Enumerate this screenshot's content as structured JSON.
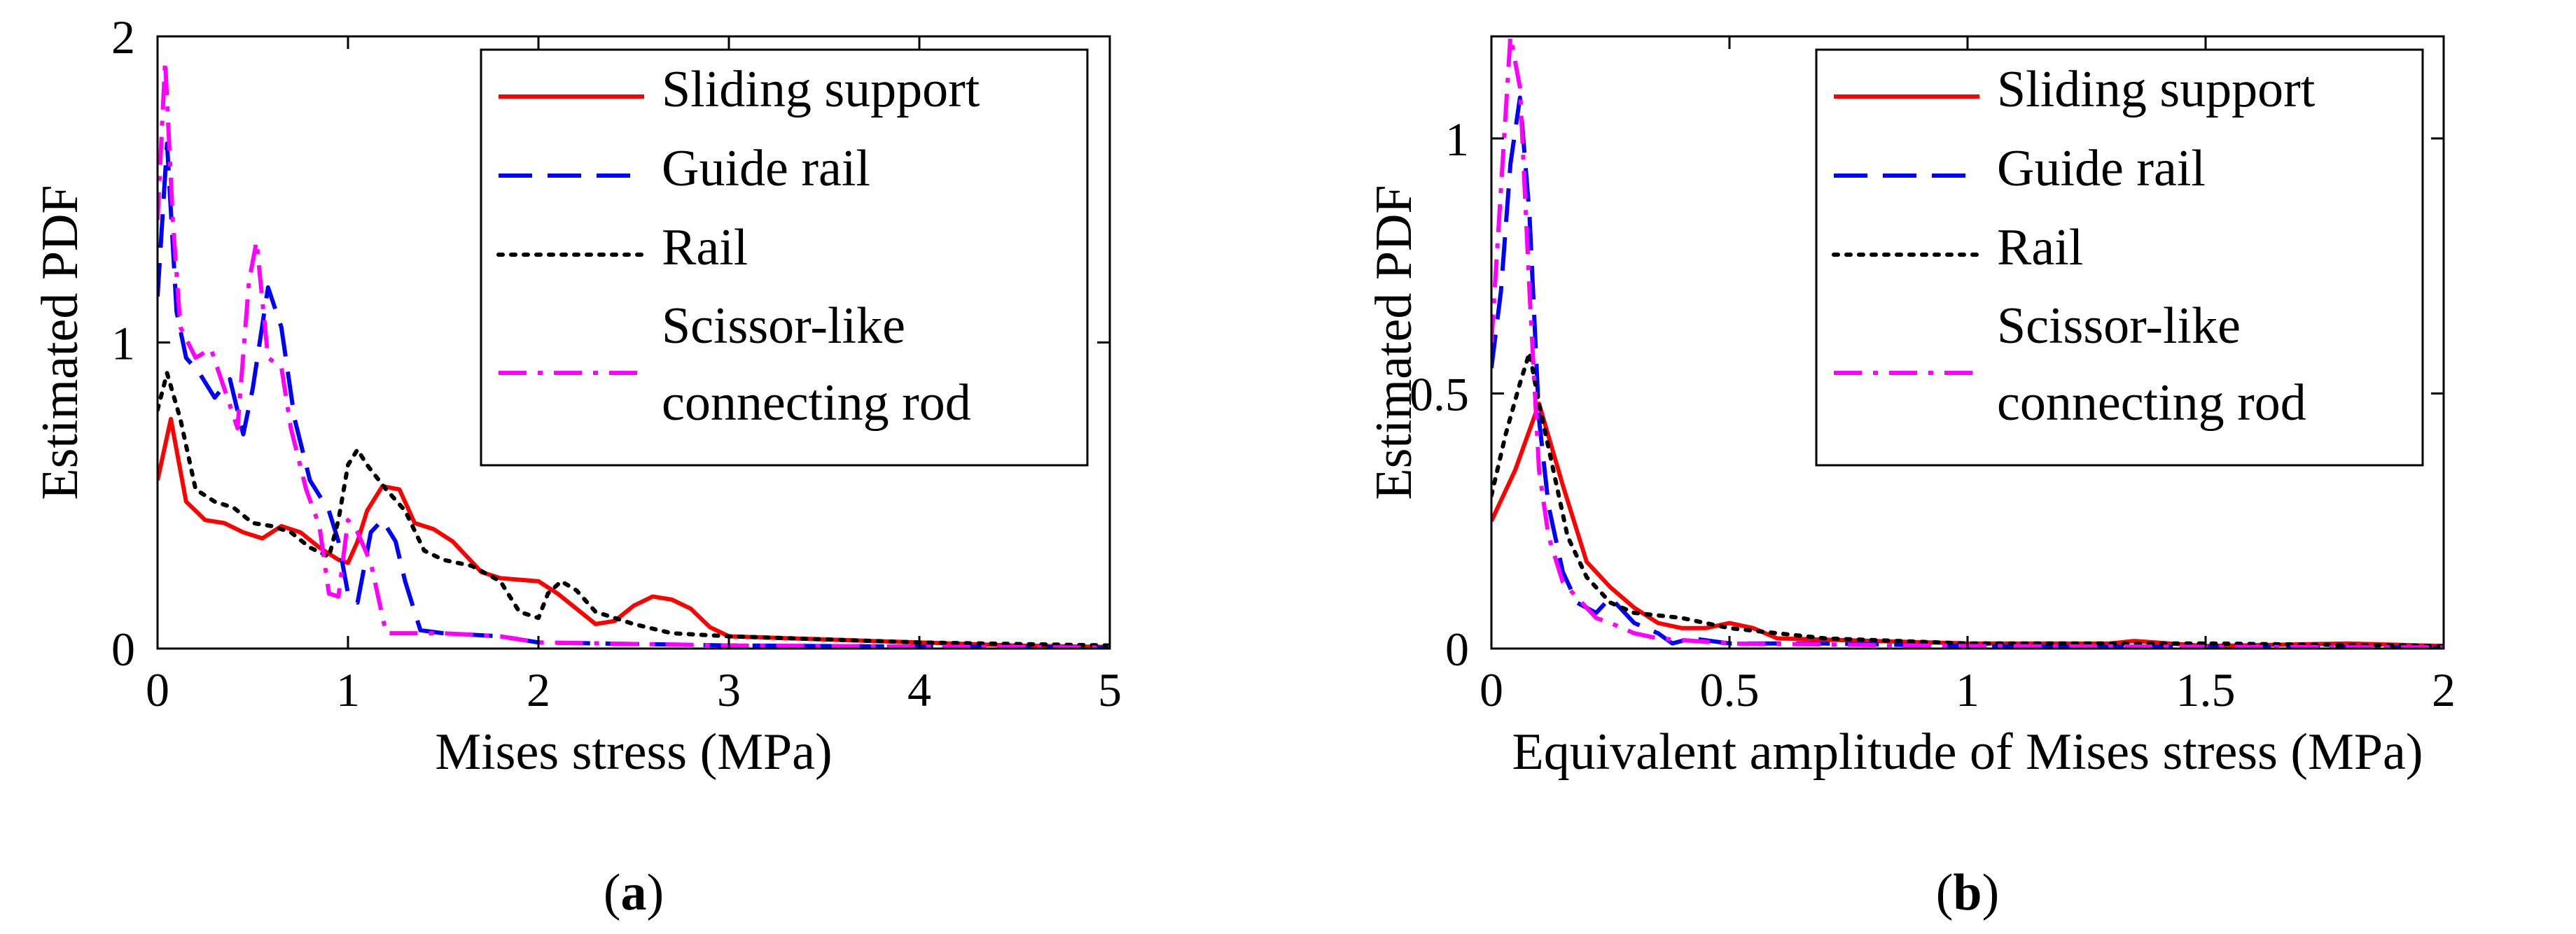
{
  "chart_data": [
    {
      "type": "line",
      "panel_label": "a",
      "xlabel": "Mises stress (MPa)",
      "ylabel": "Estimated PDF",
      "xlim": [
        0,
        5
      ],
      "ylim": [
        0,
        2
      ],
      "x_ticks": [
        "0",
        "1",
        "2",
        "3",
        "4",
        "5"
      ],
      "y_ticks": [
        "0",
        "1",
        "2"
      ],
      "legend_position": "top-right",
      "series": [
        {
          "name": "Sliding support",
          "color": "#ff0000",
          "style": "solid",
          "points": [
            [
              0,
              0.55
            ],
            [
              0.07,
              0.75
            ],
            [
              0.15,
              0.48
            ],
            [
              0.25,
              0.42
            ],
            [
              0.35,
              0.41
            ],
            [
              0.45,
              0.38
            ],
            [
              0.55,
              0.36
            ],
            [
              0.65,
              0.4
            ],
            [
              0.75,
              0.38
            ],
            [
              0.85,
              0.33
            ],
            [
              0.95,
              0.29
            ],
            [
              1.0,
              0.28
            ],
            [
              1.05,
              0.35
            ],
            [
              1.1,
              0.45
            ],
            [
              1.18,
              0.53
            ],
            [
              1.27,
              0.52
            ],
            [
              1.35,
              0.41
            ],
            [
              1.45,
              0.39
            ],
            [
              1.55,
              0.35
            ],
            [
              1.7,
              0.25
            ],
            [
              1.8,
              0.23
            ],
            [
              2.0,
              0.22
            ],
            [
              2.1,
              0.18
            ],
            [
              2.2,
              0.13
            ],
            [
              2.3,
              0.08
            ],
            [
              2.4,
              0.09
            ],
            [
              2.5,
              0.14
            ],
            [
              2.6,
              0.17
            ],
            [
              2.7,
              0.16
            ],
            [
              2.8,
              0.13
            ],
            [
              2.9,
              0.07
            ],
            [
              3.0,
              0.04
            ],
            [
              3.5,
              0.03
            ],
            [
              4.0,
              0.02
            ],
            [
              4.5,
              0.01
            ],
            [
              5.0,
              0.005
            ]
          ]
        },
        {
          "name": "Guide rail",
          "color": "#0000ff",
          "style": "dashed",
          "points": [
            [
              0,
              1.15
            ],
            [
              0.05,
              1.65
            ],
            [
              0.1,
              1.1
            ],
            [
              0.15,
              0.95
            ],
            [
              0.22,
              0.9
            ],
            [
              0.3,
              0.82
            ],
            [
              0.38,
              0.88
            ],
            [
              0.45,
              0.7
            ],
            [
              0.5,
              0.85
            ],
            [
              0.58,
              1.18
            ],
            [
              0.65,
              1.05
            ],
            [
              0.72,
              0.75
            ],
            [
              0.8,
              0.55
            ],
            [
              0.9,
              0.45
            ],
            [
              0.95,
              0.35
            ],
            [
              1.0,
              0.18
            ],
            [
              1.05,
              0.15
            ],
            [
              1.12,
              0.38
            ],
            [
              1.18,
              0.42
            ],
            [
              1.25,
              0.35
            ],
            [
              1.3,
              0.22
            ],
            [
              1.38,
              0.06
            ],
            [
              1.5,
              0.05
            ],
            [
              1.8,
              0.04
            ],
            [
              2.0,
              0.02
            ],
            [
              3.0,
              0.01
            ],
            [
              5.0,
              0.003
            ]
          ]
        },
        {
          "name": "Rail",
          "color": "#000000",
          "style": "dotted",
          "points": [
            [
              0,
              0.78
            ],
            [
              0.05,
              0.9
            ],
            [
              0.12,
              0.75
            ],
            [
              0.2,
              0.52
            ],
            [
              0.3,
              0.48
            ],
            [
              0.4,
              0.46
            ],
            [
              0.5,
              0.41
            ],
            [
              0.6,
              0.4
            ],
            [
              0.7,
              0.38
            ],
            [
              0.8,
              0.33
            ],
            [
              0.9,
              0.3
            ],
            [
              0.95,
              0.42
            ],
            [
              1.0,
              0.6
            ],
            [
              1.05,
              0.65
            ],
            [
              1.1,
              0.6
            ],
            [
              1.2,
              0.52
            ],
            [
              1.3,
              0.45
            ],
            [
              1.4,
              0.32
            ],
            [
              1.5,
              0.29
            ],
            [
              1.65,
              0.27
            ],
            [
              1.8,
              0.22
            ],
            [
              1.9,
              0.12
            ],
            [
              2.0,
              0.1
            ],
            [
              2.05,
              0.18
            ],
            [
              2.12,
              0.22
            ],
            [
              2.2,
              0.19
            ],
            [
              2.3,
              0.12
            ],
            [
              2.5,
              0.08
            ],
            [
              2.7,
              0.05
            ],
            [
              3.0,
              0.04
            ],
            [
              3.5,
              0.03
            ],
            [
              4.0,
              0.02
            ],
            [
              5.0,
              0.01
            ]
          ]
        },
        {
          "name": "Scissor-like connecting rod",
          "color": "#ff00ff",
          "style": "dashdot",
          "points": [
            [
              0,
              1.4
            ],
            [
              0.04,
              1.92
            ],
            [
              0.08,
              1.4
            ],
            [
              0.12,
              1.05
            ],
            [
              0.2,
              0.95
            ],
            [
              0.28,
              0.98
            ],
            [
              0.35,
              0.85
            ],
            [
              0.42,
              0.72
            ],
            [
              0.48,
              1.2
            ],
            [
              0.52,
              1.33
            ],
            [
              0.58,
              0.95
            ],
            [
              0.65,
              0.92
            ],
            [
              0.7,
              0.72
            ],
            [
              0.78,
              0.52
            ],
            [
              0.85,
              0.4
            ],
            [
              0.9,
              0.18
            ],
            [
              0.95,
              0.17
            ],
            [
              1.0,
              0.42
            ],
            [
              1.05,
              0.38
            ],
            [
              1.12,
              0.28
            ],
            [
              1.2,
              0.05
            ],
            [
              1.3,
              0.05
            ],
            [
              1.5,
              0.05
            ],
            [
              1.8,
              0.04
            ],
            [
              2.0,
              0.02
            ],
            [
              3.0,
              0.01
            ],
            [
              5.0,
              0.003
            ]
          ]
        }
      ]
    },
    {
      "type": "line",
      "panel_label": "b",
      "xlabel": "Equivalent amplitude of Mises stress (MPa)",
      "ylabel": "Estimated PDF",
      "xlim": [
        0,
        2
      ],
      "ylim": [
        0,
        1.2
      ],
      "x_ticks": [
        "0",
        "0.5",
        "1",
        "1.5",
        "2"
      ],
      "y_ticks": [
        "0",
        "0.5",
        "1"
      ],
      "legend_position": "top-right",
      "series": [
        {
          "name": "Sliding support",
          "color": "#ff0000",
          "style": "solid",
          "points": [
            [
              0,
              0.25
            ],
            [
              0.05,
              0.35
            ],
            [
              0.1,
              0.48
            ],
            [
              0.15,
              0.32
            ],
            [
              0.2,
              0.17
            ],
            [
              0.25,
              0.12
            ],
            [
              0.3,
              0.08
            ],
            [
              0.35,
              0.05
            ],
            [
              0.4,
              0.04
            ],
            [
              0.45,
              0.04
            ],
            [
              0.5,
              0.05
            ],
            [
              0.55,
              0.04
            ],
            [
              0.6,
              0.02
            ],
            [
              0.8,
              0.015
            ],
            [
              1.0,
              0.01
            ],
            [
              1.3,
              0.01
            ],
            [
              1.35,
              0.015
            ],
            [
              1.5,
              0.005
            ],
            [
              1.8,
              0.01
            ],
            [
              2.0,
              0.005
            ]
          ]
        },
        {
          "name": "Guide rail",
          "color": "#0000ff",
          "style": "dashed",
          "points": [
            [
              0,
              0.55
            ],
            [
              0.02,
              0.7
            ],
            [
              0.04,
              0.95
            ],
            [
              0.06,
              1.08
            ],
            [
              0.08,
              0.85
            ],
            [
              0.1,
              0.45
            ],
            [
              0.12,
              0.28
            ],
            [
              0.15,
              0.15
            ],
            [
              0.18,
              0.09
            ],
            [
              0.22,
              0.07
            ],
            [
              0.25,
              0.1
            ],
            [
              0.3,
              0.05
            ],
            [
              0.35,
              0.03
            ],
            [
              0.38,
              0.01
            ],
            [
              0.42,
              0.02
            ],
            [
              0.5,
              0.01
            ],
            [
              0.7,
              0.01
            ],
            [
              1.0,
              0.005
            ],
            [
              2.0,
              0.002
            ]
          ]
        },
        {
          "name": "Rail",
          "color": "#000000",
          "style": "dotted",
          "points": [
            [
              0,
              0.3
            ],
            [
              0.03,
              0.42
            ],
            [
              0.06,
              0.52
            ],
            [
              0.08,
              0.58
            ],
            [
              0.1,
              0.48
            ],
            [
              0.13,
              0.35
            ],
            [
              0.16,
              0.22
            ],
            [
              0.2,
              0.14
            ],
            [
              0.25,
              0.09
            ],
            [
              0.3,
              0.07
            ],
            [
              0.4,
              0.06
            ],
            [
              0.5,
              0.04
            ],
            [
              0.7,
              0.02
            ],
            [
              1.0,
              0.01
            ],
            [
              1.5,
              0.01
            ],
            [
              2.0,
              0.005
            ]
          ]
        },
        {
          "name": "Scissor-like connecting rod",
          "color": "#ff00ff",
          "style": "dashdot",
          "points": [
            [
              0,
              0.6
            ],
            [
              0.02,
              0.9
            ],
            [
              0.04,
              1.2
            ],
            [
              0.06,
              1.1
            ],
            [
              0.08,
              0.7
            ],
            [
              0.1,
              0.35
            ],
            [
              0.12,
              0.22
            ],
            [
              0.15,
              0.13
            ],
            [
              0.18,
              0.1
            ],
            [
              0.22,
              0.06
            ],
            [
              0.25,
              0.05
            ],
            [
              0.3,
              0.03
            ],
            [
              0.35,
              0.02
            ],
            [
              0.5,
              0.01
            ],
            [
              1.0,
              0.005
            ],
            [
              2.0,
              0.002
            ]
          ]
        }
      ]
    }
  ]
}
